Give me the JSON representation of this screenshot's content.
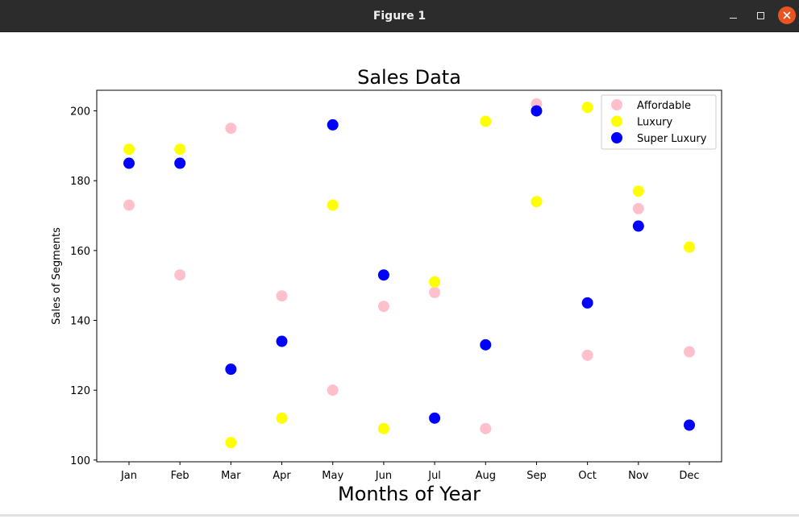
{
  "window": {
    "title": "Figure 1"
  },
  "chart_data": {
    "type": "scatter",
    "title": "Sales Data",
    "xlabel": "Months of Year",
    "ylabel": "Sales of Segments",
    "categories": [
      "Jan",
      "Feb",
      "Mar",
      "Apr",
      "May",
      "Jun",
      "Jul",
      "Aug",
      "Sep",
      "Oct",
      "Nov",
      "Dec"
    ],
    "ylim": [
      99.5,
      205.9
    ],
    "yticks": [
      100,
      120,
      140,
      160,
      180,
      200
    ],
    "grid": false,
    "legend_position": "top-right",
    "series": [
      {
        "name": "Affordable",
        "color": "#ffc0cb",
        "values": [
          173,
          153,
          195,
          147,
          120,
          144,
          148,
          109,
          202,
          130,
          172,
          131
        ]
      },
      {
        "name": "Luxury",
        "color": "#ffff00",
        "values": [
          189,
          189,
          105,
          112,
          173,
          109,
          151,
          197,
          174,
          201,
          177,
          161
        ]
      },
      {
        "name": "Super Luxury",
        "color": "#0000ff",
        "values": [
          185,
          185,
          126,
          134,
          196,
          153,
          112,
          133,
          200,
          145,
          167,
          110
        ]
      }
    ]
  }
}
